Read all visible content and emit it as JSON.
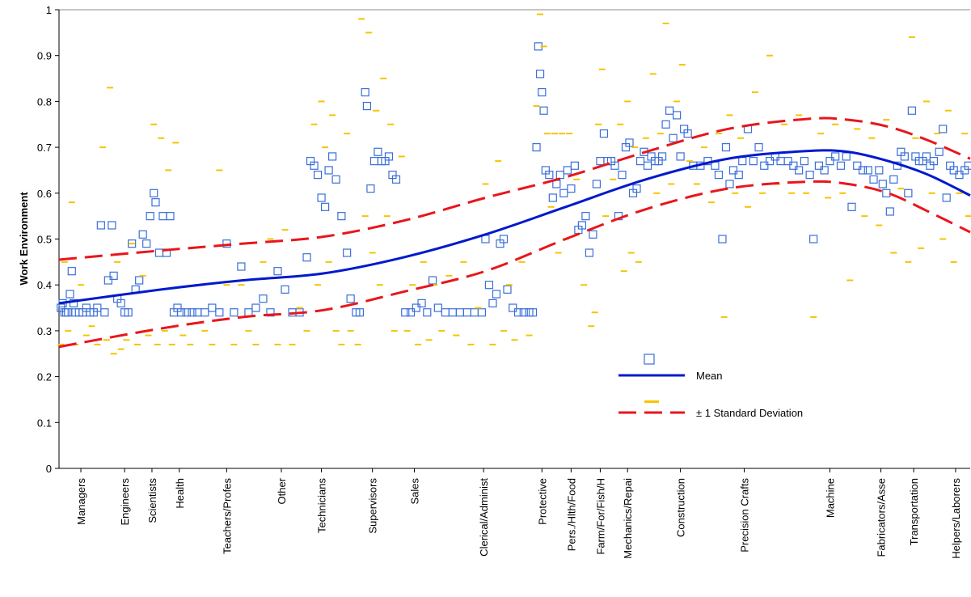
{
  "chart_data": {
    "type": "scatter",
    "ylabel": "Work Environment",
    "xlim": [
      0,
      500
    ],
    "ylim": [
      0,
      1
    ],
    "yticks": [
      0,
      0.1,
      0.2,
      0.3,
      0.4,
      0.5,
      0.6,
      0.7,
      0.8,
      0.9,
      1
    ],
    "xticks": [
      {
        "value": 12,
        "label": "Managers"
      },
      {
        "value": 36,
        "label": "Engineers"
      },
      {
        "value": 51,
        "label": "Scientists"
      },
      {
        "value": 66,
        "label": "Health"
      },
      {
        "value": 92,
        "label": "Teachers/Profes"
      },
      {
        "value": 122,
        "label": "Other"
      },
      {
        "value": 144,
        "label": "Technicians"
      },
      {
        "value": 172,
        "label": "Supervisors"
      },
      {
        "value": 195,
        "label": "Sales"
      },
      {
        "value": 233,
        "label": "Clerical/Administ"
      },
      {
        "value": 265,
        "label": "Protective"
      },
      {
        "value": 281,
        "label": "Pers./Hlth/Food"
      },
      {
        "value": 297,
        "label": "Farm/For/Fish/H"
      },
      {
        "value": 312,
        "label": "Mechanics/Repai"
      },
      {
        "value": 341,
        "label": "Construction"
      },
      {
        "value": 376,
        "label": "Precision Crafts"
      },
      {
        "value": 423,
        "label": "Machine"
      },
      {
        "value": 451,
        "label": "Fabricators/Asse"
      },
      {
        "value": 469,
        "label": "Transportation"
      },
      {
        "value": 492,
        "label": "Helpers/Laborers"
      }
    ],
    "legend": "center-right",
    "series": [
      {
        "marker": "square",
        "color": "#3a6fd8",
        "x": [
          1,
          2,
          3,
          4,
          5,
          6,
          7,
          8,
          9,
          11,
          13,
          15,
          17,
          19,
          21,
          23,
          25,
          27,
          29,
          30,
          32,
          34,
          36,
          38,
          40,
          42,
          44,
          46,
          48,
          50,
          52,
          53,
          55,
          57,
          59,
          61,
          63,
          65,
          67,
          70,
          73,
          76,
          80,
          84,
          88,
          92,
          96,
          100,
          104,
          108,
          112,
          116,
          120,
          124,
          128,
          132,
          136,
          138,
          140,
          142,
          144,
          146,
          148,
          150,
          152,
          155,
          158,
          160,
          163,
          165,
          168,
          169,
          171,
          173,
          175,
          177,
          179,
          181,
          183,
          185,
          190,
          193,
          196,
          199,
          202,
          205,
          208,
          212,
          216,
          220,
          224,
          228,
          232,
          234,
          236,
          238,
          240,
          242,
          244,
          246,
          249,
          252,
          255,
          258,
          260,
          262,
          263,
          264,
          265,
          266,
          267,
          269,
          271,
          273,
          275,
          277,
          279,
          281,
          283,
          285,
          287,
          289,
          291,
          293,
          295,
          297,
          299,
          301,
          303,
          305,
          307,
          309,
          311,
          313,
          315,
          317,
          319,
          321,
          323,
          325,
          327,
          329,
          331,
          333,
          335,
          337,
          339,
          341,
          343,
          345,
          348,
          352,
          356,
          360,
          362,
          364,
          366,
          368,
          370,
          373,
          375,
          378,
          381,
          384,
          387,
          390,
          393,
          396,
          400,
          403,
          406,
          409,
          412,
          414,
          417,
          420,
          423,
          426,
          429,
          432,
          435,
          438,
          441,
          444,
          447,
          450,
          452,
          454,
          456,
          458,
          460,
          462,
          464,
          466,
          468,
          470,
          472,
          474,
          476,
          478,
          480,
          483,
          485,
          487,
          489,
          491,
          494,
          497,
          499
        ],
        "values": [
          0.35,
          0.36,
          0.34,
          0.34,
          0.34,
          0.38,
          0.43,
          0.36,
          0.34,
          0.34,
          0.34,
          0.35,
          0.34,
          0.34,
          0.35,
          0.53,
          0.34,
          0.41,
          0.53,
          0.42,
          0.37,
          0.36,
          0.34,
          0.34,
          0.49,
          0.39,
          0.41,
          0.51,
          0.49,
          0.55,
          0.6,
          0.58,
          0.47,
          0.55,
          0.47,
          0.55,
          0.34,
          0.35,
          0.34,
          0.34,
          0.34,
          0.34,
          0.34,
          0.35,
          0.34,
          0.49,
          0.34,
          0.44,
          0.34,
          0.35,
          0.37,
          0.34,
          0.43,
          0.39,
          0.34,
          0.34,
          0.46,
          0.67,
          0.66,
          0.64,
          0.59,
          0.57,
          0.65,
          0.68,
          0.63,
          0.55,
          0.47,
          0.37,
          0.34,
          0.34,
          0.82,
          0.79,
          0.61,
          0.67,
          0.69,
          0.67,
          0.67,
          0.68,
          0.64,
          0.63,
          0.34,
          0.34,
          0.35,
          0.36,
          0.34,
          0.41,
          0.35,
          0.34,
          0.34,
          0.34,
          0.34,
          0.34,
          0.34,
          0.5,
          0.4,
          0.36,
          0.38,
          0.49,
          0.5,
          0.39,
          0.35,
          0.34,
          0.34,
          0.34,
          0.34,
          0.7,
          0.92,
          0.86,
          0.82,
          0.78,
          0.65,
          0.64,
          0.59,
          0.62,
          0.64,
          0.6,
          0.65,
          0.61,
          0.66,
          0.52,
          0.53,
          0.55,
          0.47,
          0.51,
          0.62,
          0.67,
          0.73,
          0.67,
          0.67,
          0.66,
          0.55,
          0.64,
          0.7,
          0.71,
          0.6,
          0.61,
          0.67,
          0.69,
          0.66,
          0.68,
          0.67,
          0.67,
          0.68,
          0.75,
          0.78,
          0.72,
          0.77,
          0.68,
          0.74,
          0.73,
          0.66,
          0.66,
          0.67,
          0.66,
          0.64,
          0.5,
          0.7,
          0.62,
          0.65,
          0.64,
          0.67,
          0.74,
          0.67,
          0.7,
          0.66,
          0.67,
          0.68,
          0.67,
          0.67,
          0.66,
          0.65,
          0.67,
          0.64,
          0.5,
          0.66,
          0.65,
          0.67,
          0.68,
          0.66,
          0.68,
          0.57,
          0.66,
          0.65,
          0.65,
          0.63,
          0.65,
          0.62,
          0.6,
          0.56,
          0.63,
          0.66,
          0.69,
          0.68,
          0.6,
          0.78,
          0.68,
          0.67,
          0.67,
          0.68,
          0.66,
          0.67,
          0.69,
          0.74,
          0.59,
          0.66,
          0.65,
          0.64,
          0.65,
          0.66
        ]
      },
      {
        "marker": "dash",
        "color": "#f5c400",
        "x": [
          1,
          3,
          5,
          7,
          9,
          12,
          15,
          18,
          21,
          24,
          26,
          28,
          30,
          32,
          34,
          37,
          40,
          43,
          46,
          49,
          52,
          54,
          56,
          58,
          60,
          62,
          64,
          68,
          72,
          76,
          80,
          84,
          88,
          92,
          96,
          100,
          104,
          108,
          112,
          116,
          120,
          124,
          128,
          132,
          136,
          140,
          142,
          144,
          146,
          148,
          150,
          152,
          155,
          158,
          160,
          164,
          166,
          168,
          170,
          172,
          174,
          176,
          178,
          180,
          182,
          184,
          188,
          191,
          194,
          197,
          200,
          203,
          206,
          210,
          214,
          218,
          222,
          226,
          230,
          234,
          238,
          241,
          244,
          247,
          250,
          254,
          258,
          262,
          264,
          266,
          268,
          270,
          272,
          274,
          276,
          278,
          280,
          284,
          288,
          292,
          294,
          296,
          298,
          300,
          304,
          308,
          310,
          312,
          314,
          316,
          318,
          322,
          326,
          328,
          330,
          333,
          336,
          339,
          342,
          346,
          350,
          354,
          358,
          362,
          365,
          368,
          371,
          374,
          378,
          382,
          386,
          390,
          394,
          398,
          402,
          406,
          410,
          414,
          418,
          422,
          426,
          430,
          434,
          438,
          442,
          446,
          450,
          454,
          458,
          462,
          466,
          468,
          470,
          473,
          476,
          479,
          482,
          485,
          488,
          491,
          494,
          497,
          499
        ],
        "values": [
          0.27,
          0.45,
          0.3,
          0.58,
          0.27,
          0.4,
          0.29,
          0.31,
          0.27,
          0.7,
          0.28,
          0.83,
          0.25,
          0.45,
          0.26,
          0.28,
          0.49,
          0.27,
          0.42,
          0.29,
          0.75,
          0.27,
          0.72,
          0.3,
          0.65,
          0.27,
          0.71,
          0.29,
          0.27,
          0.4,
          0.3,
          0.27,
          0.65,
          0.4,
          0.27,
          0.4,
          0.3,
          0.27,
          0.45,
          0.5,
          0.27,
          0.52,
          0.27,
          0.35,
          0.3,
          0.75,
          0.4,
          0.8,
          0.7,
          0.45,
          0.77,
          0.3,
          0.27,
          0.73,
          0.3,
          0.27,
          0.98,
          0.55,
          0.95,
          0.47,
          0.78,
          0.4,
          0.85,
          0.55,
          0.75,
          0.3,
          0.68,
          0.3,
          0.4,
          0.27,
          0.45,
          0.28,
          0.4,
          0.3,
          0.42,
          0.29,
          0.45,
          0.27,
          0.35,
          0.62,
          0.27,
          0.67,
          0.3,
          0.4,
          0.28,
          0.45,
          0.29,
          0.79,
          0.99,
          0.92,
          0.73,
          0.57,
          0.73,
          0.47,
          0.73,
          0.5,
          0.73,
          0.63,
          0.4,
          0.31,
          0.34,
          0.75,
          0.87,
          0.55,
          0.63,
          0.75,
          0.43,
          0.8,
          0.47,
          0.7,
          0.45,
          0.72,
          0.86,
          0.6,
          0.73,
          0.97,
          0.62,
          0.8,
          0.88,
          0.67,
          0.62,
          0.7,
          0.58,
          0.73,
          0.33,
          0.77,
          0.6,
          0.72,
          0.57,
          0.82,
          0.6,
          0.9,
          0.62,
          0.75,
          0.6,
          0.77,
          0.6,
          0.33,
          0.73,
          0.59,
          0.75,
          0.6,
          0.41,
          0.74,
          0.55,
          0.72,
          0.53,
          0.76,
          0.47,
          0.61,
          0.45,
          0.94,
          0.72,
          0.48,
          0.8,
          0.6,
          0.73,
          0.5,
          0.78,
          0.45,
          0.6,
          0.73,
          0.55
        ]
      },
      {
        "name": "Mean",
        "type": "line",
        "color": "#0019cc",
        "x": [
          0,
          56,
          101,
          145,
          189,
          234,
          278,
          322,
          367,
          411,
          433,
          455,
          477,
          500
        ],
        "values": [
          0.36,
          0.39,
          0.41,
          0.425,
          0.46,
          0.51,
          0.57,
          0.63,
          0.675,
          0.692,
          0.69,
          0.67,
          0.64,
          0.595
        ]
      },
      {
        "name": "± 1 Standard Deviation",
        "type": "band-lines",
        "color": "#e8161c",
        "x": [
          0,
          56,
          101,
          145,
          189,
          234,
          278,
          322,
          367,
          411,
          433,
          455,
          477,
          500
        ],
        "upper": [
          0.455,
          0.475,
          0.49,
          0.505,
          0.54,
          0.59,
          0.635,
          0.69,
          0.74,
          0.762,
          0.76,
          0.745,
          0.715,
          0.675
        ],
        "lower": [
          0.265,
          0.305,
          0.33,
          0.345,
          0.385,
          0.43,
          0.5,
          0.565,
          0.61,
          0.625,
          0.62,
          0.6,
          0.56,
          0.515
        ]
      }
    ]
  }
}
